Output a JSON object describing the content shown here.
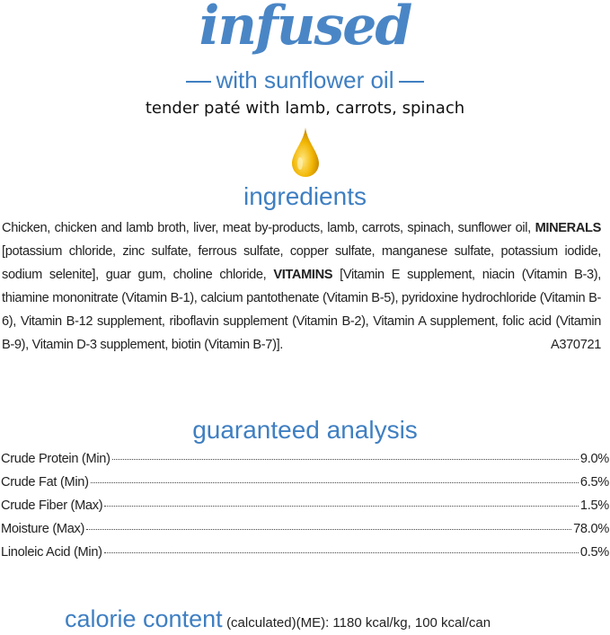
{
  "brand": "infused",
  "tagline": "with sunflower oil",
  "description": "tender paté with lamb, carrots, spinach",
  "icon": "oil-drop-icon",
  "colors": {
    "accent": "#4a86c6",
    "drop": "#f2b705"
  },
  "ingredients": {
    "heading": "ingredients",
    "segments": [
      "Chicken, chicken and lamb broth, liver, meat by-products, lamb, carrots, spinach, sunflower oil, ",
      "MINERALS",
      " [potassium chloride, zinc sulfate, ferrous sulfate, copper sulfate, manganese sulfate, potassium iodide, sodium selenite], guar gum, choline chloride, ",
      "VITAMINS",
      " [Vitamin E supplement, niacin (Vitamin B-3), thiamine mononitrate (Vitamin B-1), calcium pantothenate (Vitamin B-5), pyridoxine hydrochloride (Vitamin B-6), Vitamin B-12 supplement, riboflavin supplement (Vitamin B-2), Vitamin A supplement, folic acid (Vitamin B-9), Vitamin D-3 supplement, biotin (Vitamin B-7)]."
    ],
    "code": "A370721"
  },
  "analysis": {
    "heading": "guaranteed analysis",
    "rows": [
      {
        "label": "Crude Protein (Min)",
        "value": "9.0%"
      },
      {
        "label": "Crude Fat (Min)",
        "value": "6.5%"
      },
      {
        "label": "Crude Fiber (Max)",
        "value": "1.5%"
      },
      {
        "label": "Moisture (Max)",
        "value": "78.0%"
      },
      {
        "label": "Linoleic Acid (Min)",
        "value": "0.5%"
      }
    ]
  },
  "calorie": {
    "heading": "calorie content",
    "text": "(calculated)(ME): 1180 kcal/kg, 100 kcal/can"
  }
}
